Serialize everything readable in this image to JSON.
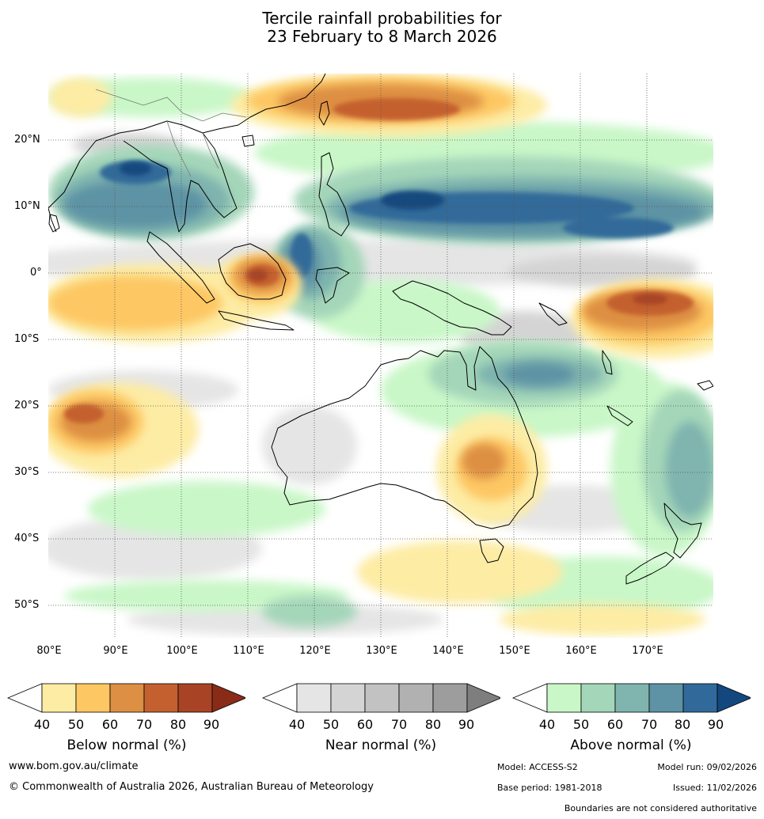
{
  "title_line1": "Tercile rainfall probabilities for",
  "title_line2": "23 February to 8 March 2026",
  "latitude_labels": [
    "20°N",
    "10°N",
    "0°",
    "10°S",
    "20°S",
    "30°S",
    "40°S",
    "50°S"
  ],
  "longitude_labels": [
    "80°E",
    "90°E",
    "100°E",
    "110°E",
    "120°E",
    "130°E",
    "140°E",
    "150°E",
    "160°E",
    "170°E"
  ],
  "colorbars": [
    {
      "title": "Below normal (%)",
      "ticks": [
        "40",
        "50",
        "60",
        "70",
        "80",
        "90"
      ],
      "colors": [
        "#ffffff",
        "#fdeca4",
        "#fdc763",
        "#dd8f43",
        "#c4602f",
        "#a84425",
        "#8a2b18"
      ]
    },
    {
      "title": "Near normal (%)",
      "ticks": [
        "40",
        "50",
        "60",
        "70",
        "80",
        "90"
      ],
      "colors": [
        "#ffffff",
        "#e5e5e5",
        "#d4d4d4",
        "#c2c2c2",
        "#b1b1b1",
        "#9d9d9d",
        "#7e7e7e"
      ]
    },
    {
      "title": "Above normal (%)",
      "ticks": [
        "40",
        "50",
        "60",
        "70",
        "80",
        "90"
      ],
      "colors": [
        "#ffffff",
        "#c9f7c8",
        "#a4d6b9",
        "#7fb4af",
        "#5d93a4",
        "#316a9a",
        "#13487e"
      ]
    }
  ],
  "footer": {
    "website": "www.bom.gov.au/climate",
    "copyright": "© Commonwealth of Australia 2026, Australian Bureau of Meteorology",
    "model": "Model: ACCESS-S2",
    "model_run": "Model run: 09/02/2026",
    "base_period": "Base period: 1981-2018",
    "issued": "Issued: 11/02/2026",
    "disclaimer": "Boundaries are not considered authoritative"
  }
}
